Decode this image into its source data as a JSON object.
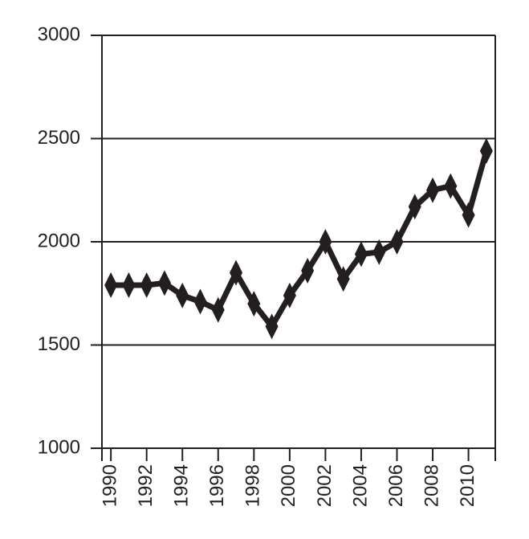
{
  "chart_data": {
    "type": "line",
    "x": [
      1990,
      1991,
      1992,
      1993,
      1994,
      1995,
      1996,
      1997,
      1998,
      1999,
      2000,
      2001,
      2002,
      2003,
      2004,
      2005,
      2006,
      2007,
      2008,
      2009,
      2010,
      2011
    ],
    "values": [
      1790,
      1790,
      1790,
      1800,
      1740,
      1710,
      1670,
      1850,
      1700,
      1590,
      1740,
      1860,
      2000,
      1820,
      1940,
      1950,
      2000,
      2170,
      2250,
      2270,
      2130,
      2440
    ],
    "color": "#231f20",
    "xlim": [
      1989.5,
      2011.5
    ],
    "xticks": [
      1990,
      1992,
      1994,
      1996,
      1998,
      2000,
      2002,
      2004,
      2006,
      2008,
      2010
    ],
    "ylim": [
      1000,
      3000
    ],
    "yticks": [
      1000,
      1500,
      2000,
      2500,
      3000
    ],
    "grid": true
  }
}
